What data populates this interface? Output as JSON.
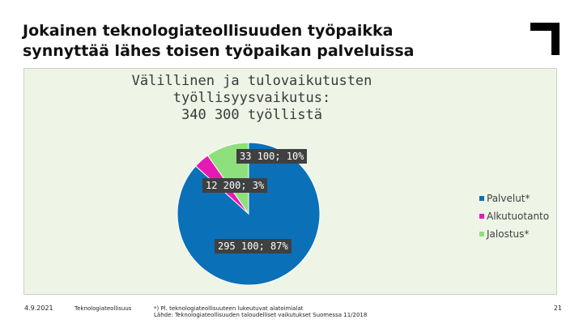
{
  "slide": {
    "title_line1": "Jokainen teknologiateollisuuden työpaikka",
    "title_line2": "synnyttää lähes toisen työpaikan palveluissa"
  },
  "footer": {
    "date": "4.9.2021",
    "org": "Teknologiateollisuus",
    "note": "*) Pl. teknologiateollisuuteen lukeutuvat alatoimialat",
    "source": "Lähde: Teknologiateollisuuden taloudelliset vaikutukset Suomessa 11/2018",
    "page": "21"
  },
  "chart_data": {
    "type": "pie",
    "title": [
      "Välillinen ja tulovaikutusten",
      "työllisyysvaikutus:",
      "340 300 työllistä"
    ],
    "legend_position": "right",
    "slices": [
      {
        "name": "Palvelut*",
        "value": 295100,
        "percent": 87,
        "label": "295 100; 87%",
        "color": "#0a70b8"
      },
      {
        "name": "Alkutuotanto",
        "value": 12200,
        "percent": 3,
        "label": "12 200; 3%",
        "color": "#e619b4"
      },
      {
        "name": "Jalostus*",
        "value": 33100,
        "percent": 10,
        "label": "33 100; 10%",
        "color": "#8ee07c"
      }
    ]
  }
}
